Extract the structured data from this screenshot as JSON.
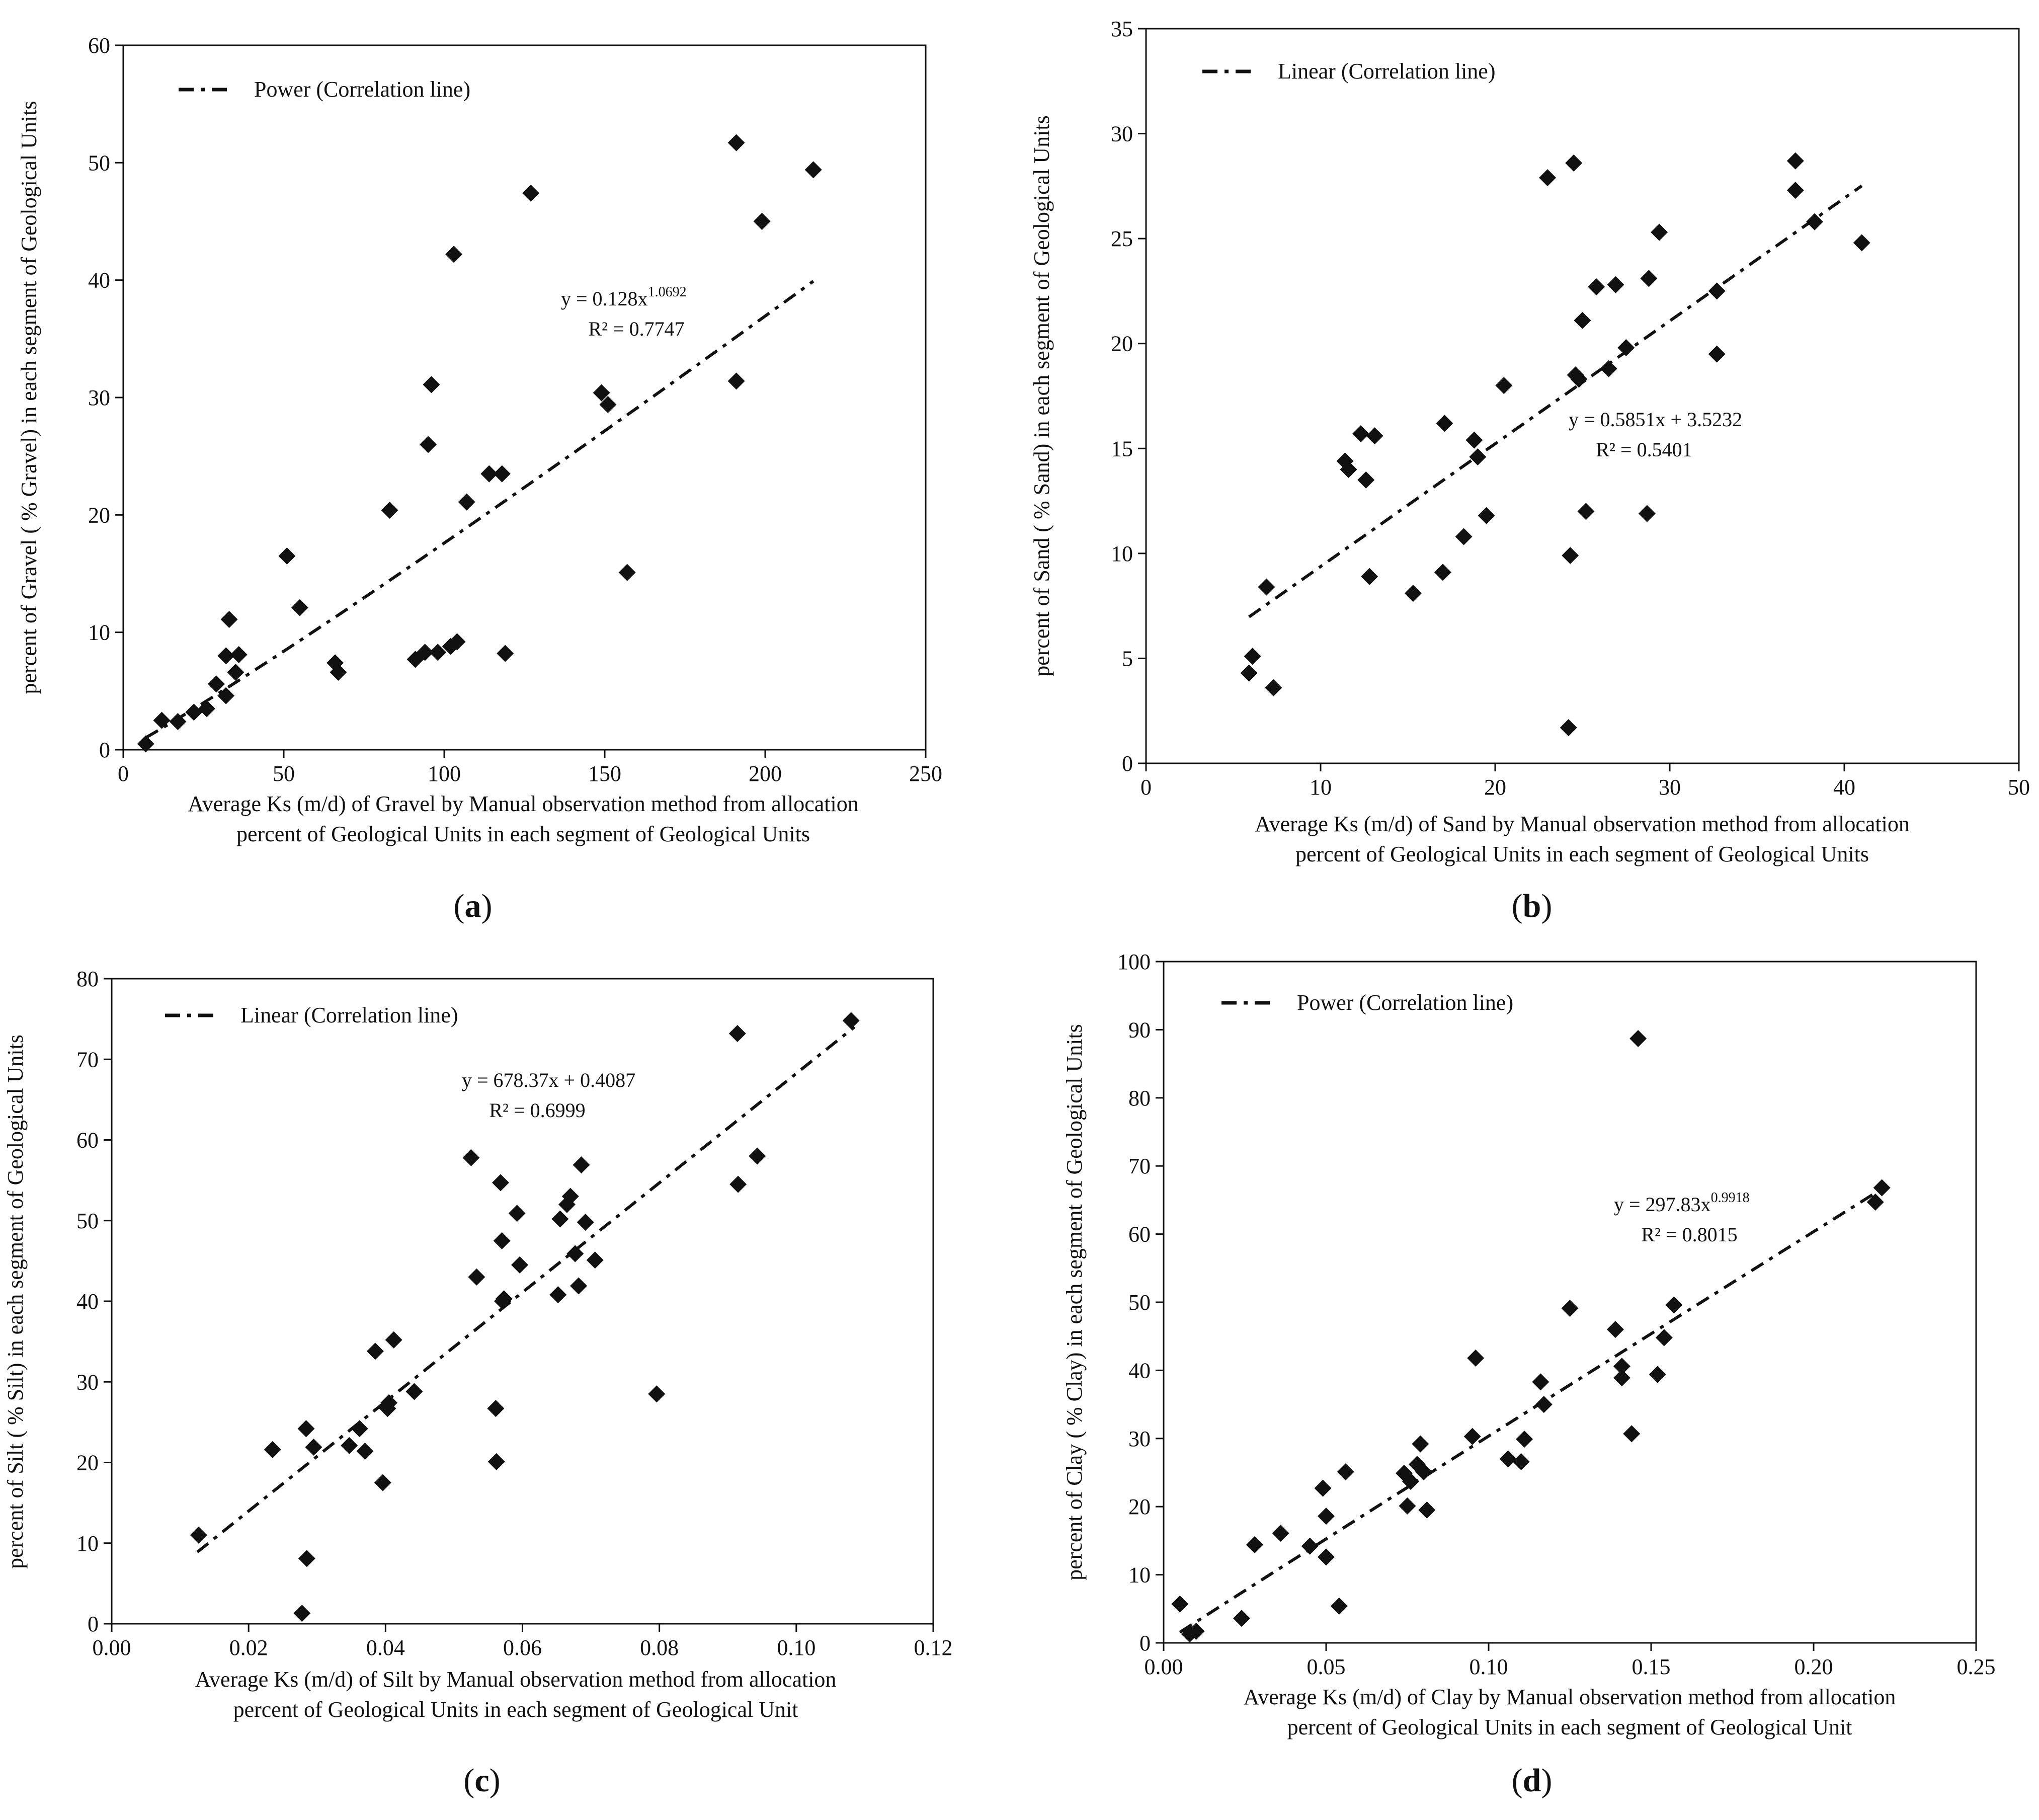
{
  "chart_data": [
    {
      "panel": "a",
      "type": "scatter",
      "marker": "diamond",
      "legend": "Power (Correlation line)",
      "fit": "power",
      "fit_params": {
        "a": 0.128,
        "b": 1.0692
      },
      "fit_range": [
        7,
        215
      ],
      "equation_text": "y = 0.128x",
      "equation_exp": "1.0692",
      "r2_text": "R² = 0.7747",
      "xlabel_line1": "Average Ks (m/d) of Gravel by Manual observation method from allocation",
      "xlabel_line2": "percent of Geological Units in each segment of Geological Units",
      "ylabel": "percent of Gravel ( % Gravel) in each segment of Geological Units",
      "xlim": [
        0,
        250
      ],
      "ylim": [
        0,
        60
      ],
      "xticks": [
        0,
        50,
        100,
        150,
        200,
        250
      ],
      "yticks": [
        0,
        10,
        20,
        30,
        40,
        50,
        60
      ],
      "tick_decimals": 0,
      "panel_label": "a",
      "points": [
        [
          7,
          0.5
        ],
        [
          12,
          2.5
        ],
        [
          17,
          2.4
        ],
        [
          22,
          3.2
        ],
        [
          26,
          3.5
        ],
        [
          29,
          5.6
        ],
        [
          32,
          4.6
        ],
        [
          32,
          8
        ],
        [
          33,
          11.1
        ],
        [
          35,
          6.6
        ],
        [
          36,
          8.1
        ],
        [
          51,
          16.5
        ],
        [
          55,
          12.1
        ],
        [
          66,
          7.4
        ],
        [
          67,
          6.6
        ],
        [
          83,
          20.4
        ],
        [
          91,
          7.7
        ],
        [
          94,
          8.3
        ],
        [
          95,
          26
        ],
        [
          96,
          31.1
        ],
        [
          98,
          8.3
        ],
        [
          102,
          8.8
        ],
        [
          103,
          42.2
        ],
        [
          104,
          9.2
        ],
        [
          107,
          21.1
        ],
        [
          114,
          23.5
        ],
        [
          118,
          23.5
        ],
        [
          119,
          8.2
        ],
        [
          127,
          47.4
        ],
        [
          149,
          30.4
        ],
        [
          151,
          29.4
        ],
        [
          157,
          15.1
        ],
        [
          191,
          51.7
        ],
        [
          191,
          31.4
        ],
        [
          199,
          45
        ],
        [
          215,
          49.4
        ]
      ]
    },
    {
      "panel": "b",
      "type": "scatter",
      "marker": "diamond",
      "legend": "Linear (Correlation line)",
      "fit": "linear",
      "fit_params": {
        "a": 0.5851,
        "b": 3.5232
      },
      "fit_range": [
        5.9,
        41
      ],
      "equation_text": "y = 0.5851x + 3.5232",
      "equation_exp": "",
      "r2_text": "R² = 0.5401",
      "xlabel_line1": "Average Ks (m/d) of Sand by Manual observation method from allocation",
      "xlabel_line2": "percent of Geological Units in each segment of Geological Units",
      "ylabel": "percent of Sand ( % Sand) in each segment of Geological Units",
      "xlim": [
        0,
        50
      ],
      "ylim": [
        0,
        35
      ],
      "xticks": [
        0,
        10,
        20,
        30,
        40,
        50
      ],
      "yticks": [
        0,
        5,
        10,
        15,
        20,
        25,
        30,
        35
      ],
      "tick_decimals": 0,
      "panel_label": "b",
      "points": [
        [
          5.9,
          4.3
        ],
        [
          6.1,
          5.1
        ],
        [
          6.9,
          8.4
        ],
        [
          7.3,
          3.6
        ],
        [
          11.4,
          14.4
        ],
        [
          11.6,
          14
        ],
        [
          12.3,
          15.7
        ],
        [
          12.6,
          13.5
        ],
        [
          12.8,
          8.9
        ],
        [
          13.1,
          15.6
        ],
        [
          15.3,
          8.1
        ],
        [
          17,
          9.1
        ],
        [
          17.1,
          16.2
        ],
        [
          18.2,
          10.8
        ],
        [
          18.8,
          15.4
        ],
        [
          19,
          14.6
        ],
        [
          19.5,
          11.8
        ],
        [
          20.5,
          18
        ],
        [
          23,
          27.9
        ],
        [
          24.2,
          1.7
        ],
        [
          24.3,
          9.9
        ],
        [
          24.5,
          28.6
        ],
        [
          24.6,
          18.5
        ],
        [
          24.8,
          18.3
        ],
        [
          25,
          21.1
        ],
        [
          25.2,
          12
        ],
        [
          25.8,
          22.7
        ],
        [
          26.5,
          18.8
        ],
        [
          26.9,
          22.8
        ],
        [
          27.5,
          19.8
        ],
        [
          28.7,
          11.9
        ],
        [
          28.8,
          23.1
        ],
        [
          29.4,
          25.3
        ],
        [
          32.7,
          22.5
        ],
        [
          32.7,
          19.5
        ],
        [
          37.2,
          28.7
        ],
        [
          37.2,
          27.3
        ],
        [
          38.3,
          25.8
        ],
        [
          41,
          24.8
        ]
      ]
    },
    {
      "panel": "c",
      "type": "scatter",
      "marker": "diamond",
      "legend": "Linear (Correlation line)",
      "fit": "linear",
      "fit_params": {
        "a": 678.37,
        "b": 0.4087
      },
      "fit_range": [
        0.0125,
        0.1085
      ],
      "equation_text": "y = 678.37x + 0.4087",
      "equation_exp": "",
      "r2_text": "R² = 0.6999",
      "xlabel_line1": "Average Ks (m/d) of Silt by Manual observation method from allocation",
      "xlabel_line2": "percent of Geological Units in each segment of Geological Unit",
      "ylabel": "percent of Silt ( % Silt) in each segment of Geological Units",
      "xlim": [
        0,
        0.12
      ],
      "ylim": [
        0,
        80
      ],
      "xticks": [
        0.0,
        0.02,
        0.04,
        0.06,
        0.08,
        0.1,
        0.12
      ],
      "yticks": [
        0,
        10,
        20,
        30,
        40,
        50,
        60,
        70,
        80
      ],
      "tick_decimals": 2,
      "panel_label": "c",
      "points": [
        [
          0.0127,
          11
        ],
        [
          0.0235,
          21.6
        ],
        [
          0.0278,
          1.3
        ],
        [
          0.0284,
          24.2
        ],
        [
          0.0285,
          8.1
        ],
        [
          0.0295,
          21.9
        ],
        [
          0.0347,
          22.1
        ],
        [
          0.0362,
          24.2
        ],
        [
          0.037,
          21.4
        ],
        [
          0.0385,
          33.8
        ],
        [
          0.0396,
          17.5
        ],
        [
          0.0403,
          26.7
        ],
        [
          0.0405,
          27.4
        ],
        [
          0.0412,
          35.2
        ],
        [
          0.0442,
          28.8
        ],
        [
          0.0525,
          57.8
        ],
        [
          0.0533,
          43
        ],
        [
          0.0561,
          26.7
        ],
        [
          0.0562,
          20.1
        ],
        [
          0.0568,
          54.7
        ],
        [
          0.057,
          47.5
        ],
        [
          0.0571,
          40
        ],
        [
          0.0573,
          40.3
        ],
        [
          0.0592,
          50.9
        ],
        [
          0.0596,
          44.5
        ],
        [
          0.0652,
          40.8
        ],
        [
          0.0655,
          50.2
        ],
        [
          0.0665,
          52
        ],
        [
          0.067,
          53
        ],
        [
          0.0677,
          45.9
        ],
        [
          0.0682,
          41.9
        ],
        [
          0.0686,
          56.9
        ],
        [
          0.0692,
          49.8
        ],
        [
          0.0706,
          45.1
        ],
        [
          0.0796,
          28.5
        ],
        [
          0.0914,
          73.2
        ],
        [
          0.0915,
          54.5
        ],
        [
          0.0943,
          58
        ],
        [
          0.108,
          74.8
        ]
      ]
    },
    {
      "panel": "d",
      "type": "scatter",
      "marker": "diamond",
      "legend": "Power (Correlation line)",
      "fit": "power",
      "fit_params": {
        "a": 297.83,
        "b": 0.9918
      },
      "fit_range": [
        0.005,
        0.222
      ],
      "equation_text": "y = 297.83x",
      "equation_exp": "0.9918",
      "r2_text": "R² = 0.8015",
      "xlabel_line1": "Average Ks (m/d) of Clay by Manual observation method from allocation",
      "xlabel_line2": "percent of Geological Units in each segment of Geological Unit",
      "ylabel": "percent of Clay ( % Clay) in each segment of Geological Units",
      "xlim": [
        0,
        0.25
      ],
      "ylim": [
        0,
        100
      ],
      "xticks": [
        0.0,
        0.05,
        0.1,
        0.15,
        0.2,
        0.25
      ],
      "yticks": [
        0,
        10,
        20,
        30,
        40,
        50,
        60,
        70,
        80,
        90,
        100
      ],
      "tick_decimals": 2,
      "panel_label": "d",
      "points": [
        [
          0.005,
          5.7
        ],
        [
          0.008,
          1.3
        ],
        [
          0.01,
          1.7
        ],
        [
          0.024,
          3.6
        ],
        [
          0.028,
          14.4
        ],
        [
          0.036,
          16.1
        ],
        [
          0.045,
          14.2
        ],
        [
          0.049,
          22.7
        ],
        [
          0.05,
          18.6
        ],
        [
          0.05,
          12.6
        ],
        [
          0.054,
          5.4
        ],
        [
          0.056,
          25.1
        ],
        [
          0.074,
          24.9
        ],
        [
          0.075,
          20.1
        ],
        [
          0.076,
          23.7
        ],
        [
          0.078,
          26.2
        ],
        [
          0.079,
          29.2
        ],
        [
          0.08,
          25.1
        ],
        [
          0.081,
          19.5
        ],
        [
          0.095,
          30.3
        ],
        [
          0.096,
          41.8
        ],
        [
          0.106,
          27
        ],
        [
          0.11,
          26.6
        ],
        [
          0.111,
          29.9
        ],
        [
          0.116,
          38.3
        ],
        [
          0.117,
          35
        ],
        [
          0.125,
          49.1
        ],
        [
          0.139,
          46
        ],
        [
          0.141,
          38.9
        ],
        [
          0.141,
          40.6
        ],
        [
          0.144,
          30.7
        ],
        [
          0.146,
          88.7
        ],
        [
          0.152,
          39.4
        ],
        [
          0.154,
          44.8
        ],
        [
          0.157,
          49.6
        ],
        [
          0.219,
          64.7
        ],
        [
          0.221,
          66.8
        ]
      ]
    }
  ]
}
